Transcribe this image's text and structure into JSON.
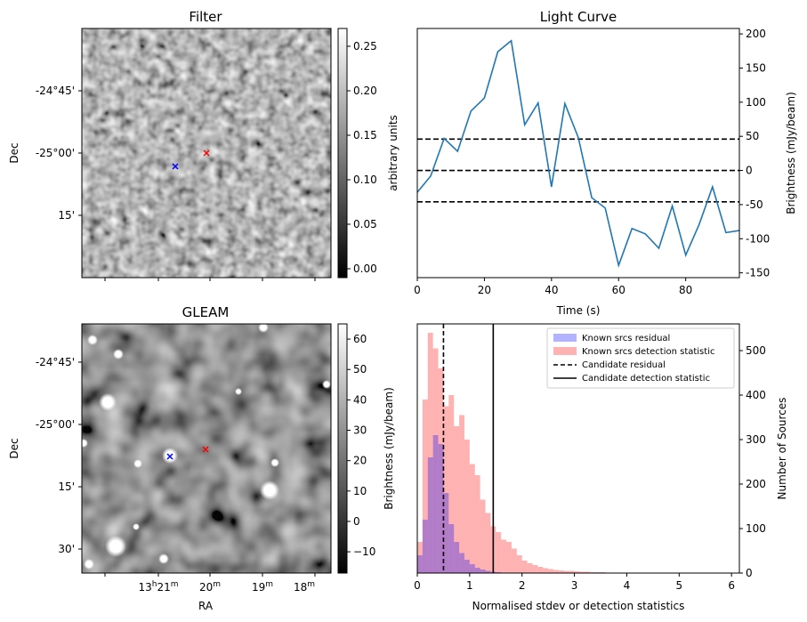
{
  "chart_data": [
    {
      "type": "heatmap",
      "title": "Filter",
      "ylabel": "Dec",
      "ytick_labels": [
        "-24°45'",
        "-25°00'",
        "15'"
      ],
      "colorbar": {
        "label": "arbitrary units",
        "ticks": [
          "0.00",
          "0.05",
          "0.10",
          "0.15",
          "0.20",
          "0.25"
        ],
        "range": [
          -0.01,
          0.27
        ],
        "colormap": "grayscale"
      },
      "markers": [
        {
          "symbol": "x",
          "color": "#0000ff"
        },
        {
          "symbol": "x",
          "color": "#ff0000"
        }
      ]
    },
    {
      "type": "line",
      "title": "Light Curve",
      "xlabel": "Time (s)",
      "ylabel": "Brightness (mJy/beam)",
      "x_ticks": [
        "0",
        "20",
        "40",
        "60",
        "80"
      ],
      "y_ticks": [
        "-150",
        "-100",
        "-50",
        "0",
        "50",
        "100",
        "150",
        "200"
      ],
      "xlim": [
        0,
        96
      ],
      "ylim": [
        -157,
        208
      ],
      "y_axis_side": "right",
      "series": [
        {
          "color": "#1f77b4",
          "x": [
            0,
            4,
            8,
            12,
            16,
            20,
            24,
            28,
            32,
            36,
            40,
            44,
            48,
            52,
            56,
            60,
            64,
            68,
            72,
            76,
            80,
            84,
            88,
            92,
            96
          ],
          "y": [
            -32,
            -8,
            47,
            28,
            87,
            106,
            174,
            190,
            67,
            99,
            -24,
            98,
            48,
            -40,
            -55,
            -139,
            -85,
            -93,
            -114,
            -52,
            -124,
            -79,
            -24,
            -91,
            -88
          ]
        }
      ],
      "hlines": [
        {
          "y": 46,
          "style": "dashed"
        },
        {
          "y": 0,
          "style": "dashed"
        },
        {
          "y": -46,
          "style": "dashed"
        }
      ]
    },
    {
      "type": "heatmap",
      "title": "GLEAM",
      "xlabel": "RA",
      "ylabel": "Dec",
      "ytick_labels": [
        "-24°45'",
        "-25°00'",
        "15'",
        "30'"
      ],
      "xtick_labels": [
        {
          "main": "13",
          "sup1": "h",
          "mid": "21",
          "sup2": "m"
        },
        {
          "main": "20",
          "sup2": "m"
        },
        {
          "main": "19",
          "sup2": "m"
        },
        {
          "main": "18",
          "sup2": "m"
        }
      ],
      "colorbar": {
        "label": "Brightness (mJy/beam)",
        "ticks": [
          "−10",
          "0",
          "10",
          "20",
          "30",
          "40",
          "50",
          "60"
        ],
        "range": [
          -17,
          65
        ],
        "colormap": "grayscale"
      },
      "markers": [
        {
          "symbol": "x",
          "color": "#0000ff"
        },
        {
          "symbol": "x",
          "color": "#ff0000"
        }
      ]
    },
    {
      "type": "bar",
      "subtype": "histogram",
      "xlabel": "Normalised stdev or detection statistics",
      "ylabel": "Number of Sources",
      "x_ticks": [
        "0",
        "1",
        "2",
        "3",
        "4",
        "5",
        "6"
      ],
      "y_ticks": [
        "0",
        "100",
        "200",
        "300",
        "400",
        "500"
      ],
      "xlim": [
        0,
        6.15
      ],
      "ylim": [
        0,
        560
      ],
      "y_axis_side": "right",
      "bin_width": 0.1,
      "legend": {
        "placement": "upper right",
        "entries": [
          "Known srcs residual",
          "Known srcs detection statistic",
          "Candidate residual",
          "Candidate detection statistic"
        ]
      },
      "series": [
        {
          "name": "Known srcs residual",
          "color": "#0000ff",
          "bins_start": 0.0,
          "values": [
            40,
            120,
            260,
            310,
            290,
            180,
            110,
            70,
            45,
            30,
            20,
            12,
            8,
            5,
            3,
            2,
            1
          ]
        },
        {
          "name": "Known srcs detection statistic",
          "color": "#ff0000",
          "bins_start": 0.0,
          "values": [
            70,
            390,
            540,
            505,
            460,
            375,
            400,
            330,
            355,
            300,
            245,
            220,
            165,
            135,
            105,
            92,
            75,
            70,
            55,
            40,
            28,
            22,
            18,
            14,
            11,
            9,
            7,
            6,
            5,
            5,
            4,
            3,
            3,
            2,
            2,
            2,
            1,
            1,
            1,
            1,
            1,
            1,
            1,
            1,
            1,
            0,
            0,
            0,
            0,
            0,
            0,
            0,
            0,
            0,
            1
          ]
        }
      ],
      "vlines": [
        {
          "label": "Candidate residual",
          "x": 0.5,
          "style": "dashed"
        },
        {
          "label": "Candidate detection statistic",
          "x": 1.45,
          "style": "solid"
        }
      ]
    }
  ]
}
